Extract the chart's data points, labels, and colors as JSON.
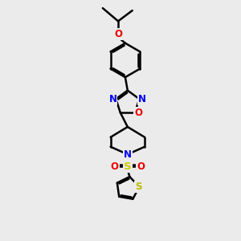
{
  "background_color": "#ebebeb",
  "bond_color": "#000000",
  "bond_width": 1.8,
  "atom_colors": {
    "N": "#0000ee",
    "O": "#ee0000",
    "S_thio": "#bbbb00",
    "S_sulfonyl": "#cccc00",
    "C": "#000000"
  },
  "font_size_atom": 8.5,
  "figsize": [
    3.0,
    3.0
  ],
  "dpi": 100
}
